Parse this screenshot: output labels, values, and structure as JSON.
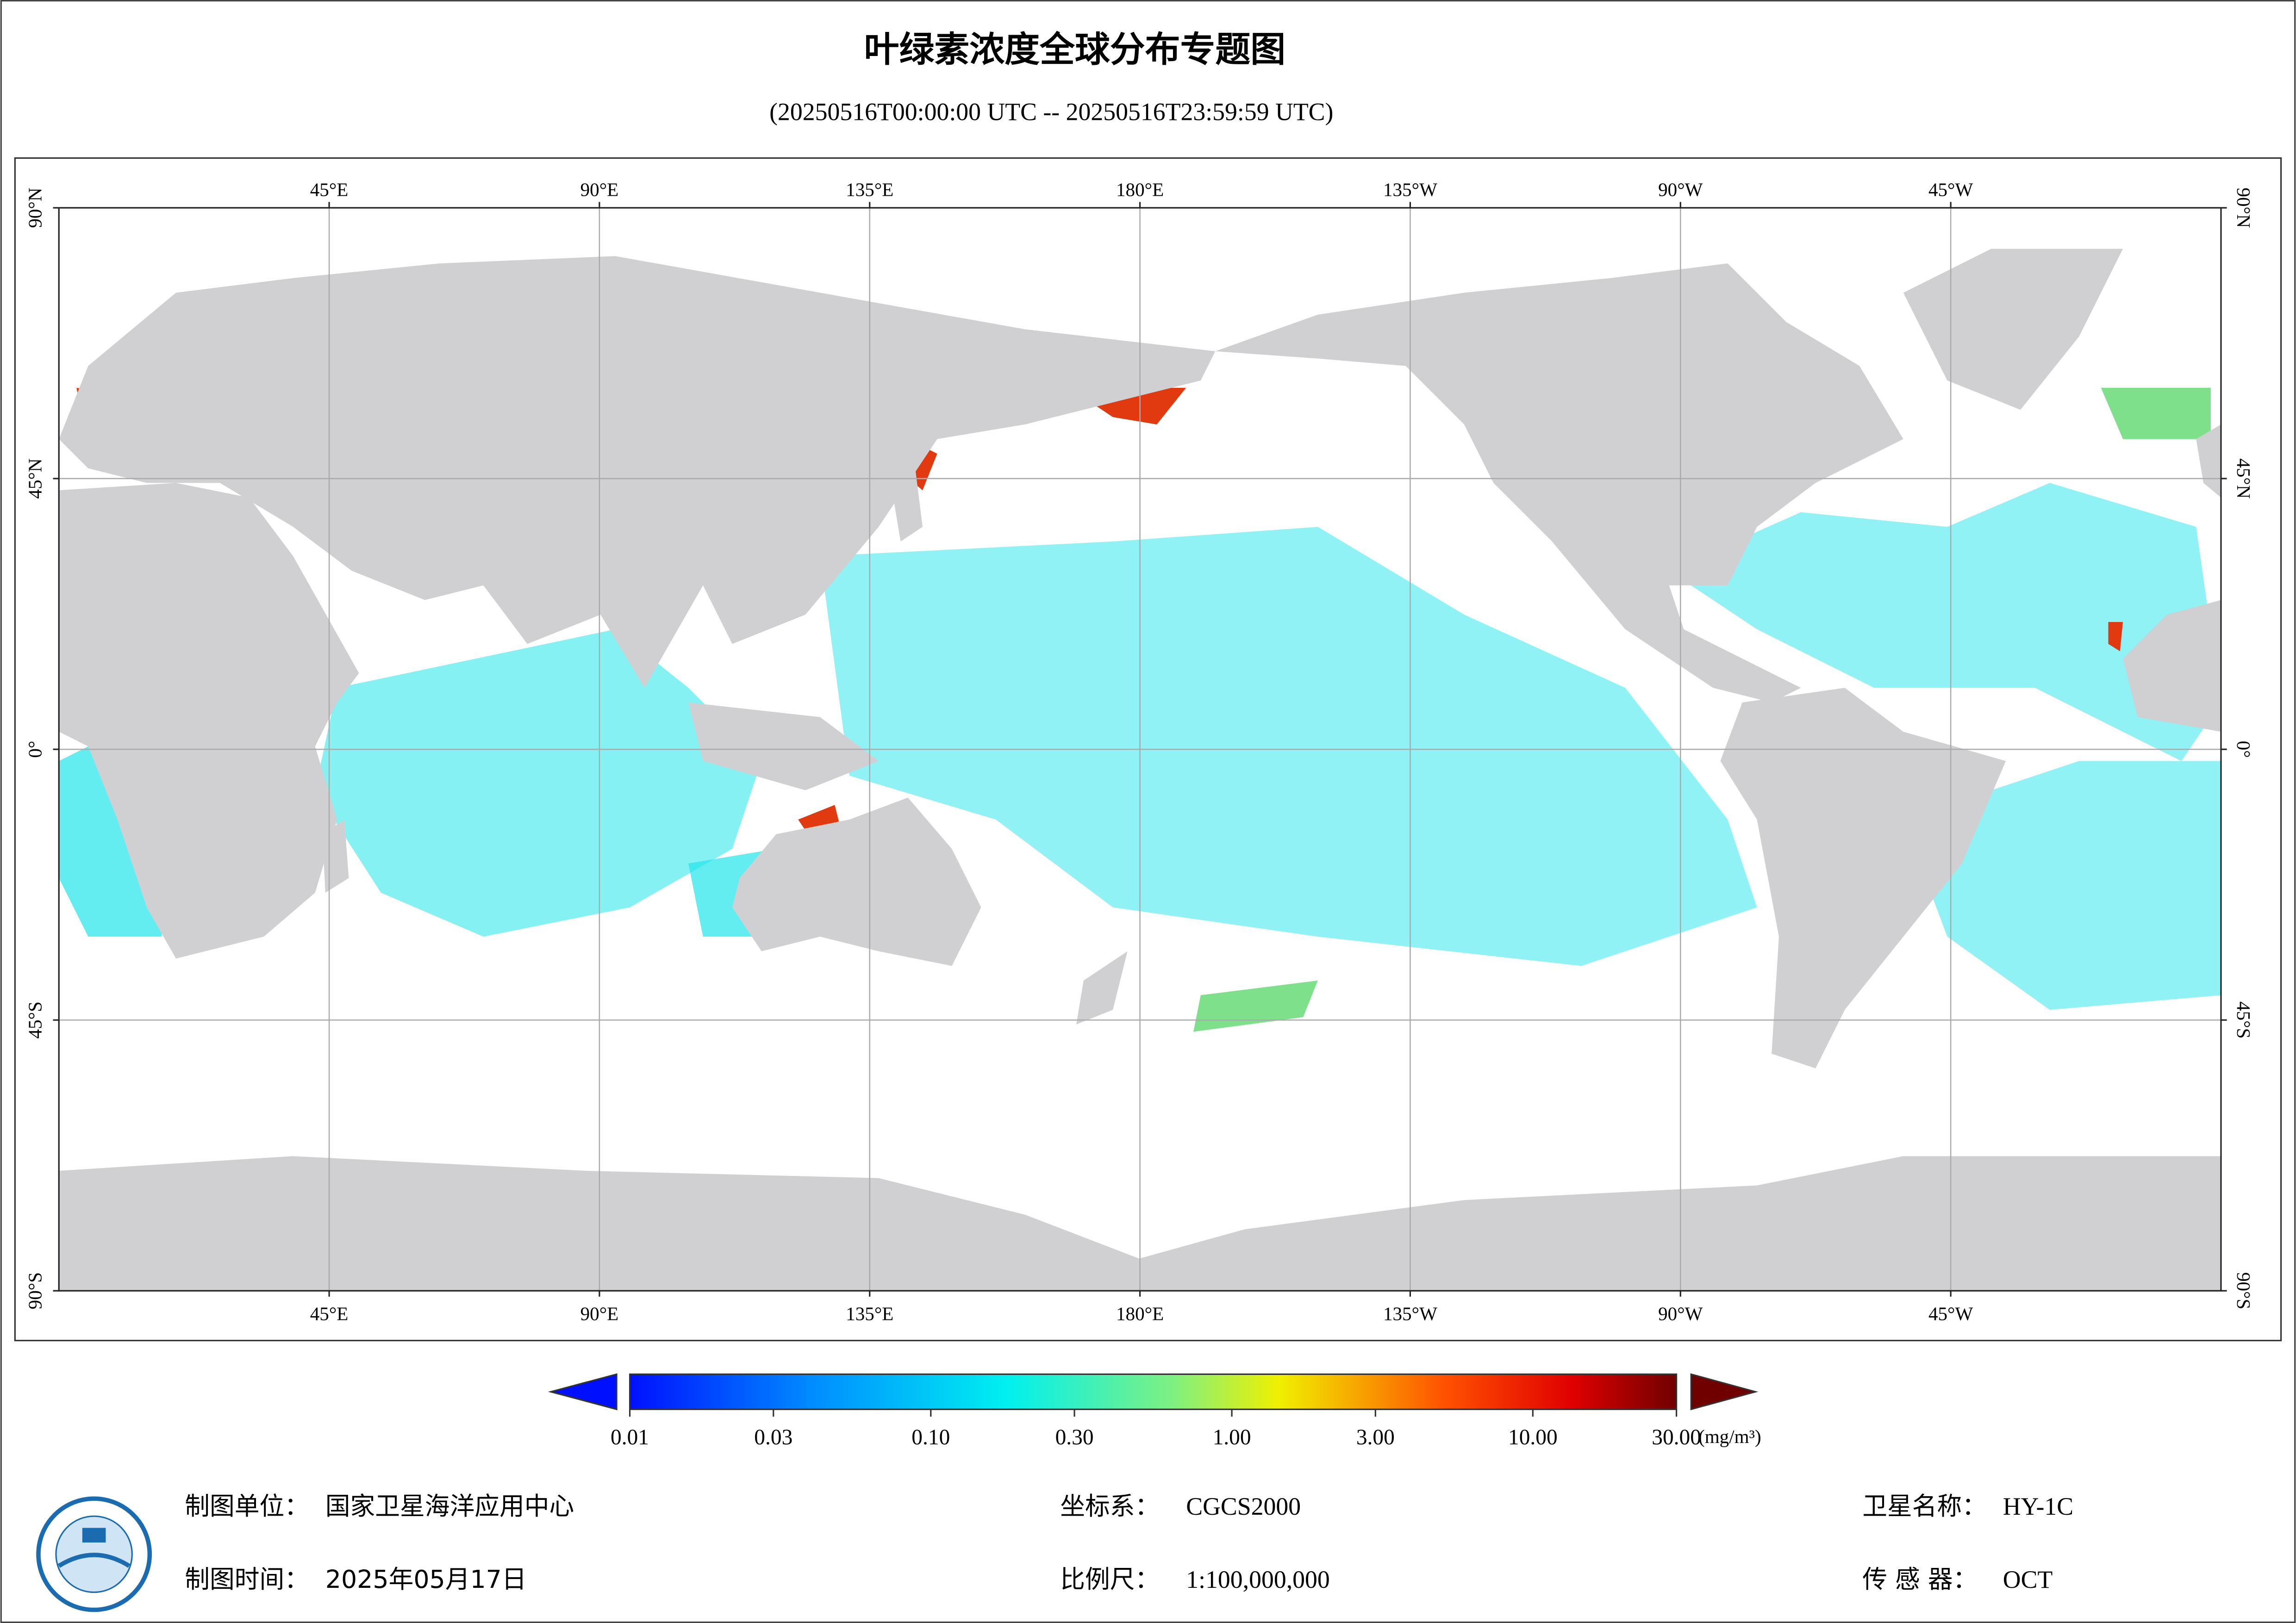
{
  "title": "叶绿素浓度全球分布专题图",
  "subtitle": "(20250516T00:00:00 UTC -- 20250516T23:59:59 UTC)",
  "map": {
    "lonlim": [
      0,
      360
    ],
    "latlim": [
      -90,
      90
    ],
    "grid": true,
    "lon_ticks": [
      {
        "value": 45,
        "label": "45°E"
      },
      {
        "value": 90,
        "label": "90°E"
      },
      {
        "value": 135,
        "label": "135°E"
      },
      {
        "value": 180,
        "label": "180°E"
      },
      {
        "value": 225,
        "label": "135°W"
      },
      {
        "value": 270,
        "label": "90°W"
      },
      {
        "value": 315,
        "label": "45°W"
      }
    ],
    "lat_ticks": [
      {
        "value": 90,
        "label": "90°N"
      },
      {
        "value": 45,
        "label": "45°N"
      },
      {
        "value": 0,
        "label": "0°"
      },
      {
        "value": -45,
        "label": "45°S"
      },
      {
        "value": -90,
        "label": "90°S"
      }
    ]
  },
  "colorbar": {
    "scale": "log",
    "lim": [
      0.01,
      30
    ],
    "unit": "(mg/m³)",
    "ticks": [
      {
        "value": 0.01,
        "label": "0.01"
      },
      {
        "value": 0.03,
        "label": "0.03"
      },
      {
        "value": 0.1,
        "label": "0.10"
      },
      {
        "value": 0.3,
        "label": "0.30"
      },
      {
        "value": 1,
        "label": "1.00"
      },
      {
        "value": 3,
        "label": "3.00"
      },
      {
        "value": 10,
        "label": "10.00"
      },
      {
        "value": 30,
        "label": "30.00"
      }
    ]
  },
  "footer": {
    "unit_label": "制图单位：",
    "unit": "国家卫星海洋应用中心",
    "time_label": "制图时间：",
    "time": "2025年05月17日",
    "crs_label": "坐标系：",
    "crs": "CGCS2000",
    "scale_label": "比例尺：",
    "scale": "1:100,000,000",
    "satellite_label": "卫星名称：",
    "satellite": "HY-1C",
    "sensor_label": "传 感 器：",
    "sensor": "OCT"
  }
}
